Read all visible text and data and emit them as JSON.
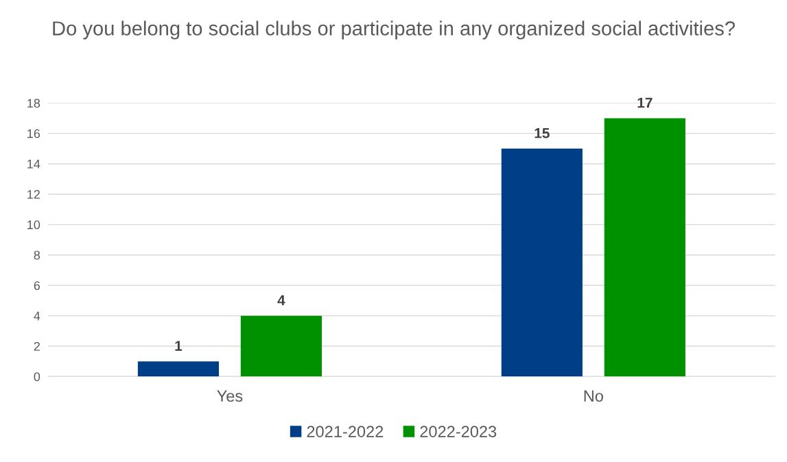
{
  "chart_data": {
    "type": "bar",
    "title": "Do you belong to social clubs or participate in any organized social activities?",
    "categories": [
      "Yes",
      "No"
    ],
    "series": [
      {
        "name": "2021-2022",
        "color": "#003f87",
        "values": [
          1,
          15
        ]
      },
      {
        "name": "2022-2023",
        "color": "#009100",
        "values": [
          4,
          17
        ]
      }
    ],
    "ylim": [
      0,
      18
    ],
    "yticks": [
      0,
      2,
      4,
      6,
      8,
      10,
      12,
      14,
      16,
      18
    ],
    "grid": "y",
    "legend": "bottom",
    "data_labels": true
  }
}
